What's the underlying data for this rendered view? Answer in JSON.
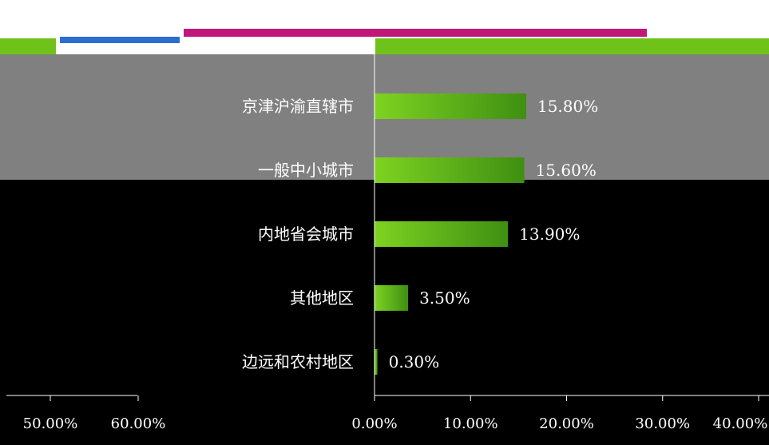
{
  "colors": {
    "bar": "#6fc21a",
    "bar_dark": "#3f8f12",
    "panel_gray": "#808080",
    "panel_black": "#000000"
  },
  "chart_data": {
    "type": "bar",
    "orientation": "horizontal",
    "categories": [
      "京津沪渝直辖市",
      "一般中小城市",
      "内地省会城市",
      "其他地区",
      "边远和农村地区"
    ],
    "values": [
      15.8,
      15.6,
      13.9,
      3.5,
      0.3
    ],
    "value_labels": [
      "15.80%",
      "15.60%",
      "13.90%",
      "3.50%",
      "0.30%"
    ],
    "xlim": [
      0,
      40
    ],
    "xticks": [
      "0.00%",
      "10.00%",
      "20.00%",
      "30.00%",
      "40.00%"
    ],
    "extra_ticks": [
      "50.00%",
      "60.00%"
    ],
    "grid": false,
    "legend": "none"
  }
}
